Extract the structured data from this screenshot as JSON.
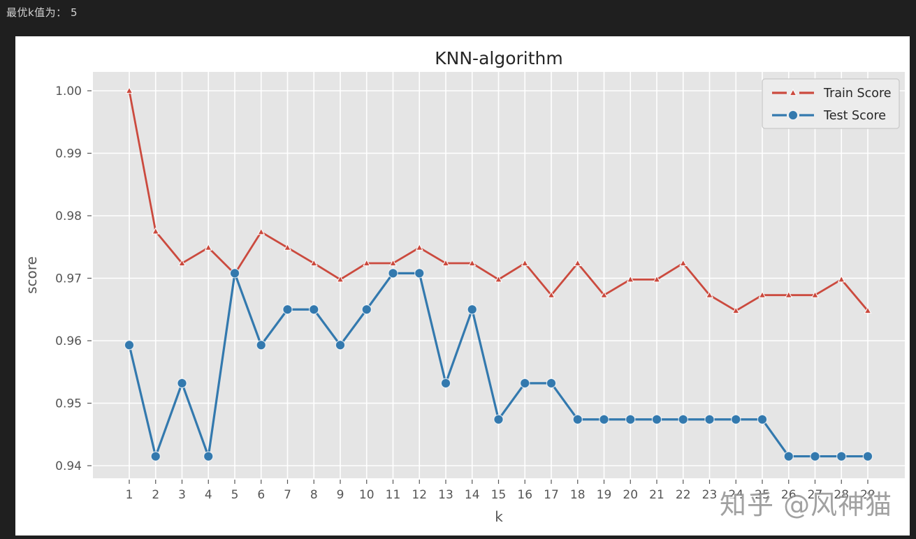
{
  "console": {
    "output": "最优k值为： 5"
  },
  "watermark": {
    "text": "知乎 @风神猫"
  },
  "colors": {
    "background_dark": "#1f1f1f",
    "figure_bg": "#ffffff",
    "plot_bg": "#e5e5e5",
    "grid": "#ffffff",
    "tick_text": "#555555",
    "title_text": "#262626",
    "train_red": "#cb4a3e",
    "test_blue": "#3379ae",
    "legend_bg": "#ececec",
    "legend_border": "#c9c9c9"
  },
  "chart_data": {
    "type": "line",
    "title": "KNN-algorithm",
    "xlabel": "k",
    "ylabel": "score",
    "x": [
      1,
      2,
      3,
      4,
      5,
      6,
      7,
      8,
      9,
      10,
      11,
      12,
      13,
      14,
      15,
      16,
      17,
      18,
      19,
      20,
      21,
      22,
      23,
      24,
      25,
      26,
      27,
      28,
      29
    ],
    "xticks": [
      1,
      2,
      3,
      4,
      5,
      6,
      7,
      8,
      9,
      10,
      11,
      12,
      13,
      14,
      15,
      16,
      17,
      18,
      19,
      20,
      21,
      22,
      23,
      24,
      25,
      26,
      27,
      28,
      29
    ],
    "yticks": [
      0.94,
      0.95,
      0.96,
      0.97,
      0.98,
      0.99,
      1.0
    ],
    "ylim": [
      0.938,
      1.003
    ],
    "grid": true,
    "legend_position": "upper right",
    "series": [
      {
        "name": "Train Score",
        "color": "#cb4a3e",
        "marker": "triangle",
        "values": [
          1.0,
          0.9775,
          0.9724,
          0.9749,
          0.9707,
          0.9774,
          0.9749,
          0.9724,
          0.9698,
          0.9724,
          0.9724,
          0.9749,
          0.9724,
          0.9724,
          0.9698,
          0.9724,
          0.9673,
          0.9724,
          0.9673,
          0.9698,
          0.9698,
          0.9724,
          0.9673,
          0.9648,
          0.9673,
          0.9673,
          0.9673,
          0.9698,
          0.9648
        ]
      },
      {
        "name": "Test Score",
        "color": "#3379ae",
        "marker": "circle",
        "values": [
          0.9593,
          0.9415,
          0.9532,
          0.9415,
          0.9708,
          0.9593,
          0.965,
          0.965,
          0.9593,
          0.965,
          0.9708,
          0.9708,
          0.9532,
          0.965,
          0.9474,
          0.9532,
          0.9532,
          0.9474,
          0.9474,
          0.9474,
          0.9474,
          0.9474,
          0.9474,
          0.9474,
          0.9474,
          0.9415,
          0.9415,
          0.9415,
          0.9415
        ]
      }
    ]
  }
}
